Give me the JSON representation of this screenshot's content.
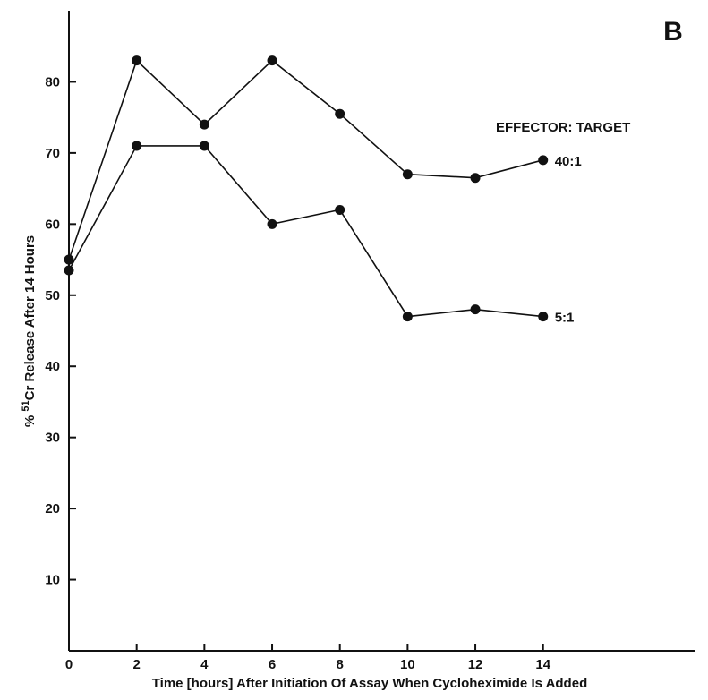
{
  "chart_data": {
    "type": "line",
    "panel_label": "B",
    "xlabel": "Time [hours] After Initiation Of Assay When Cycloheximide Is Added",
    "ylabel_prefix": "% ",
    "ylabel_isotope": "51",
    "ylabel_rest": "Cr Release After 14 Hours",
    "x_ticks": [
      0,
      2,
      4,
      6,
      8,
      10,
      12,
      14
    ],
    "y_ticks": [
      10,
      20,
      30,
      40,
      50,
      60,
      70,
      80
    ],
    "xlim": [
      0,
      18.5
    ],
    "ylim": [
      0,
      90
    ],
    "grid": false,
    "legend_title": "EFFECTOR: TARGET",
    "series": [
      {
        "name": "40:1",
        "x": [
          0,
          2,
          4,
          6,
          8,
          10,
          12,
          14
        ],
        "y": [
          55,
          83,
          74,
          83,
          75.5,
          67,
          66.5,
          69
        ]
      },
      {
        "name": "5:1",
        "x": [
          0,
          2,
          4,
          6,
          8,
          10,
          12,
          14
        ],
        "y": [
          53.5,
          71,
          71,
          60,
          62,
          47,
          48,
          47
        ]
      }
    ]
  }
}
